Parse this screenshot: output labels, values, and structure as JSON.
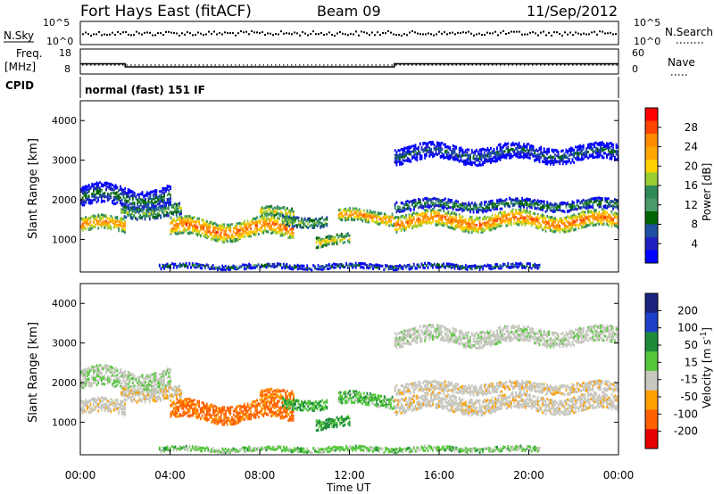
{
  "header": {
    "title": "Fort Hays East (fitACF)",
    "beam": "Beam 09",
    "date": "11/Sep/2012"
  },
  "panel_labels": {
    "nsky": "N.Sky",
    "nsearch": "N.Search",
    "freq": "Freq.",
    "freq_unit": "[MHz]",
    "nave": "Nave",
    "cpid": "CPID",
    "mode": "normal (fast) 151 IF"
  },
  "axes": {
    "noise_left_ticks": [
      "10^5",
      "10^0"
    ],
    "noise_right_ticks": [
      "10^5",
      "10^0"
    ],
    "freq_left_ticks": [
      "18",
      "8"
    ],
    "freq_right_ticks": [
      "60",
      "0"
    ],
    "range_ticks": [
      "4000",
      "3000",
      "2000",
      "1000"
    ],
    "range_label": "Slant Range [km]",
    "time_ticks": [
      "00:00",
      "04:00",
      "08:00",
      "12:00",
      "16:00",
      "20:00",
      "00:00"
    ],
    "time_label": "Time UT"
  },
  "power_scale": {
    "label": "Power [dB]",
    "ticks": [
      "28",
      "24",
      "20",
      "16",
      "12",
      "8",
      "4"
    ],
    "colors": [
      "#ff0000",
      "#ff4500",
      "#ff8c00",
      "#ffa500",
      "#ffd200",
      "#9acd32",
      "#2e8b57",
      "#4a9a6a",
      "#006400",
      "#1e4fa0",
      "#2020c0",
      "#0000ff"
    ]
  },
  "velocity_scale": {
    "label": "Velocity [m s^-1]",
    "ticks": [
      "200",
      "100",
      "50",
      "15",
      "-15",
      "-50",
      "-100",
      "-200"
    ],
    "colors": [
      "#1a237e",
      "#1e40c8",
      "#1e8b3a",
      "#55c83c",
      "#c8c8c0",
      "#ffa000",
      "#ff6000",
      "#e60000"
    ]
  },
  "chart_data": {
    "type": "heatmap",
    "x_range_hours": [
      0,
      24
    ],
    "y_range_km": [
      180,
      4500
    ],
    "frequency_segments": [
      {
        "start": "00:00",
        "end": "02:00",
        "mhz": 12.0
      },
      {
        "start": "02:00",
        "end": "14:00",
        "mhz": 10.7
      },
      {
        "start": "14:00",
        "end": "24:00",
        "mhz": 12.0
      }
    ],
    "echo_bands": [
      {
        "t_start": 0.0,
        "t_end": 2.0,
        "range_center_km": 1400,
        "range_width_km": 350,
        "power_db": 26,
        "velocity": -5
      },
      {
        "t_start": 0.0,
        "t_end": 4.0,
        "range_center_km": 2100,
        "range_width_km": 500,
        "power_db": 12,
        "velocity": 10
      },
      {
        "t_start": 1.8,
        "t_end": 4.5,
        "range_center_km": 1750,
        "range_width_km": 300,
        "power_db": 18,
        "velocity": -8
      },
      {
        "t_start": 4.0,
        "t_end": 9.5,
        "range_center_km": 1300,
        "range_width_km": 450,
        "power_db": 27,
        "velocity": -40
      },
      {
        "t_start": 8.0,
        "t_end": 9.5,
        "range_center_km": 1700,
        "range_width_km": 250,
        "power_db": 22,
        "velocity": -35
      },
      {
        "t_start": 9.0,
        "t_end": 11.0,
        "range_center_km": 1500,
        "range_width_km": 250,
        "power_db": 18,
        "velocity": 30
      },
      {
        "t_start": 10.5,
        "t_end": 12.0,
        "range_center_km": 1000,
        "range_width_km": 250,
        "power_db": 22,
        "velocity": 35
      },
      {
        "t_start": 11.5,
        "t_end": 14.0,
        "range_center_km": 1600,
        "range_width_km": 300,
        "power_db": 26,
        "velocity": 25
      },
      {
        "t_start": 14.0,
        "t_end": 24.0,
        "range_center_km": 1500,
        "range_width_km": 400,
        "power_db": 27,
        "velocity": -5
      },
      {
        "t_start": 14.0,
        "t_end": 24.0,
        "range_center_km": 1900,
        "range_width_km": 250,
        "power_db": 14,
        "velocity": -5
      },
      {
        "t_start": 3.5,
        "t_end": 20.5,
        "range_center_km": 350,
        "range_width_km": 120,
        "power_db": 12,
        "velocity": 20
      },
      {
        "t_start": 14.0,
        "t_end": 24.0,
        "range_center_km": 3200,
        "range_width_km": 400,
        "power_db": 10,
        "velocity": 5
      }
    ]
  }
}
